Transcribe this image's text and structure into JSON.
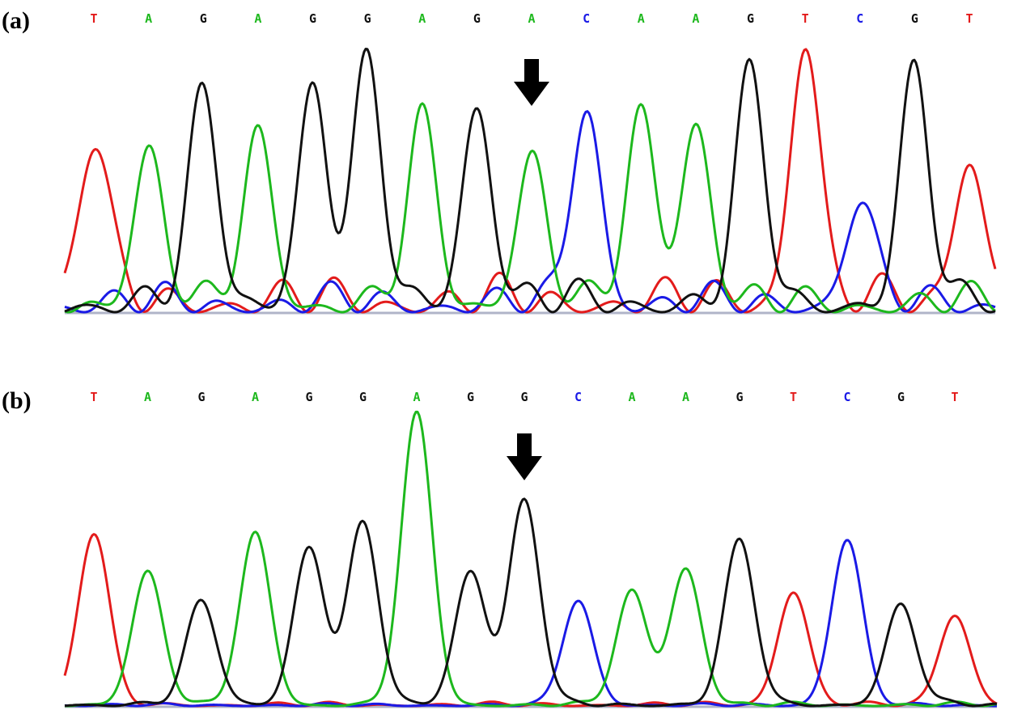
{
  "colors": {
    "A": "#1db81d",
    "C": "#1a1ae6",
    "G": "#111111",
    "T": "#e31b1b",
    "baseline": "#b0b4c8",
    "arrow": "#000000"
  },
  "chart_data": [
    {
      "type": "line",
      "label": "(a)",
      "base_calls": [
        "T",
        "A",
        "G",
        "A",
        "G",
        "G",
        "A",
        "G",
        "A",
        "C",
        "A",
        "A",
        "G",
        "T",
        "C",
        "G",
        "T"
      ],
      "marker": {
        "type": "down-arrow",
        "base_index": 8
      },
      "peaks": [
        {
          "base": "T",
          "height": 0.61
        },
        {
          "base": "A",
          "height": 0.59
        },
        {
          "base": "G",
          "height": 0.76
        },
        {
          "base": "A",
          "height": 0.64
        },
        {
          "base": "G",
          "height": 0.82
        },
        {
          "base": "G",
          "height": 0.88
        },
        {
          "base": "A",
          "height": 0.69
        },
        {
          "base": "G",
          "height": 0.75
        },
        {
          "base": "A",
          "height": 0.56
        },
        {
          "base": "C",
          "height": 0.75
        },
        {
          "base": "A",
          "height": 0.73
        },
        {
          "base": "A",
          "height": 0.69
        },
        {
          "base": "G",
          "height": 0.84
        },
        {
          "base": "T",
          "height": 1.0
        },
        {
          "base": "C",
          "height": 0.39
        },
        {
          "base": "G",
          "height": 0.85
        },
        {
          "base": "T",
          "height": 0.56
        }
      ],
      "background": {
        "A": 0.12,
        "C": 0.12,
        "G": 0.14,
        "T": 0.15
      }
    },
    {
      "type": "line",
      "label": "(b)",
      "base_calls": [
        "T",
        "A",
        "G",
        "A",
        "G",
        "G",
        "A",
        "G",
        "G",
        "C",
        "A",
        "A",
        "G",
        "T",
        "C",
        "G",
        "T"
      ],
      "marker": {
        "type": "down-arrow",
        "base_index": 8
      },
      "peaks": [
        {
          "base": "T",
          "height": 0.59
        },
        {
          "base": "A",
          "height": 0.46
        },
        {
          "base": "G",
          "height": 0.35
        },
        {
          "base": "A",
          "height": 0.59
        },
        {
          "base": "G",
          "height": 0.54
        },
        {
          "base": "G",
          "height": 0.62
        },
        {
          "base": "A",
          "height": 1.0
        },
        {
          "base": "G",
          "height": 0.46
        },
        {
          "base": "G",
          "height": 0.7
        },
        {
          "base": "C",
          "height": 0.36
        },
        {
          "base": "A",
          "height": 0.39
        },
        {
          "base": "A",
          "height": 0.47
        },
        {
          "base": "G",
          "height": 0.56
        },
        {
          "base": "T",
          "height": 0.39
        },
        {
          "base": "C",
          "height": 0.57
        },
        {
          "base": "G",
          "height": 0.34
        },
        {
          "base": "T",
          "height": 0.31
        }
      ],
      "background": {
        "A": 0.015,
        "C": 0.01,
        "G": 0.02,
        "T": 0.015
      }
    }
  ]
}
